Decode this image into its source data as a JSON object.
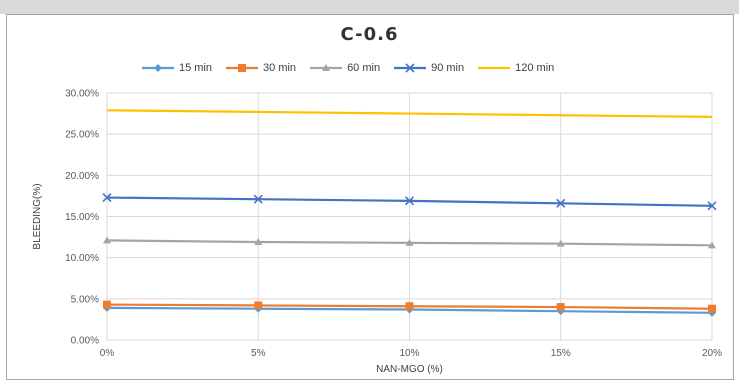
{
  "chart_data": {
    "type": "line",
    "title": "C-0.6",
    "xlabel": "NAN-MGO (%)",
    "ylabel": "BLEEDING(%)",
    "categories": [
      "0%",
      "5%",
      "10%",
      "15%",
      "20%"
    ],
    "y_ticks": [
      "0.00%",
      "5.00%",
      "10.00%",
      "15.00%",
      "20.00%",
      "25.00%",
      "30.00%"
    ],
    "ylim": [
      0,
      30
    ],
    "grid": "on",
    "legend_position": "top",
    "series": [
      {
        "name": "15 min",
        "values": [
          3.9,
          3.8,
          3.7,
          3.5,
          3.3
        ],
        "color": "#5b9bd5",
        "marker": "diamond"
      },
      {
        "name": "30 min",
        "values": [
          4.3,
          4.2,
          4.1,
          4.0,
          3.8
        ],
        "color": "#ed7d31",
        "marker": "square"
      },
      {
        "name": "60 min",
        "values": [
          12.1,
          11.9,
          11.8,
          11.7,
          11.5
        ],
        "color": "#a5a5a5",
        "marker": "triangle"
      },
      {
        "name": "90 min",
        "values": [
          17.3,
          17.1,
          16.9,
          16.6,
          16.3
        ],
        "color": "#4472c4",
        "marker": "cross"
      },
      {
        "name": "120 min",
        "values": [
          27.9,
          27.7,
          27.5,
          27.3,
          27.1
        ],
        "color": "#ffc000",
        "marker": "none"
      }
    ]
  }
}
